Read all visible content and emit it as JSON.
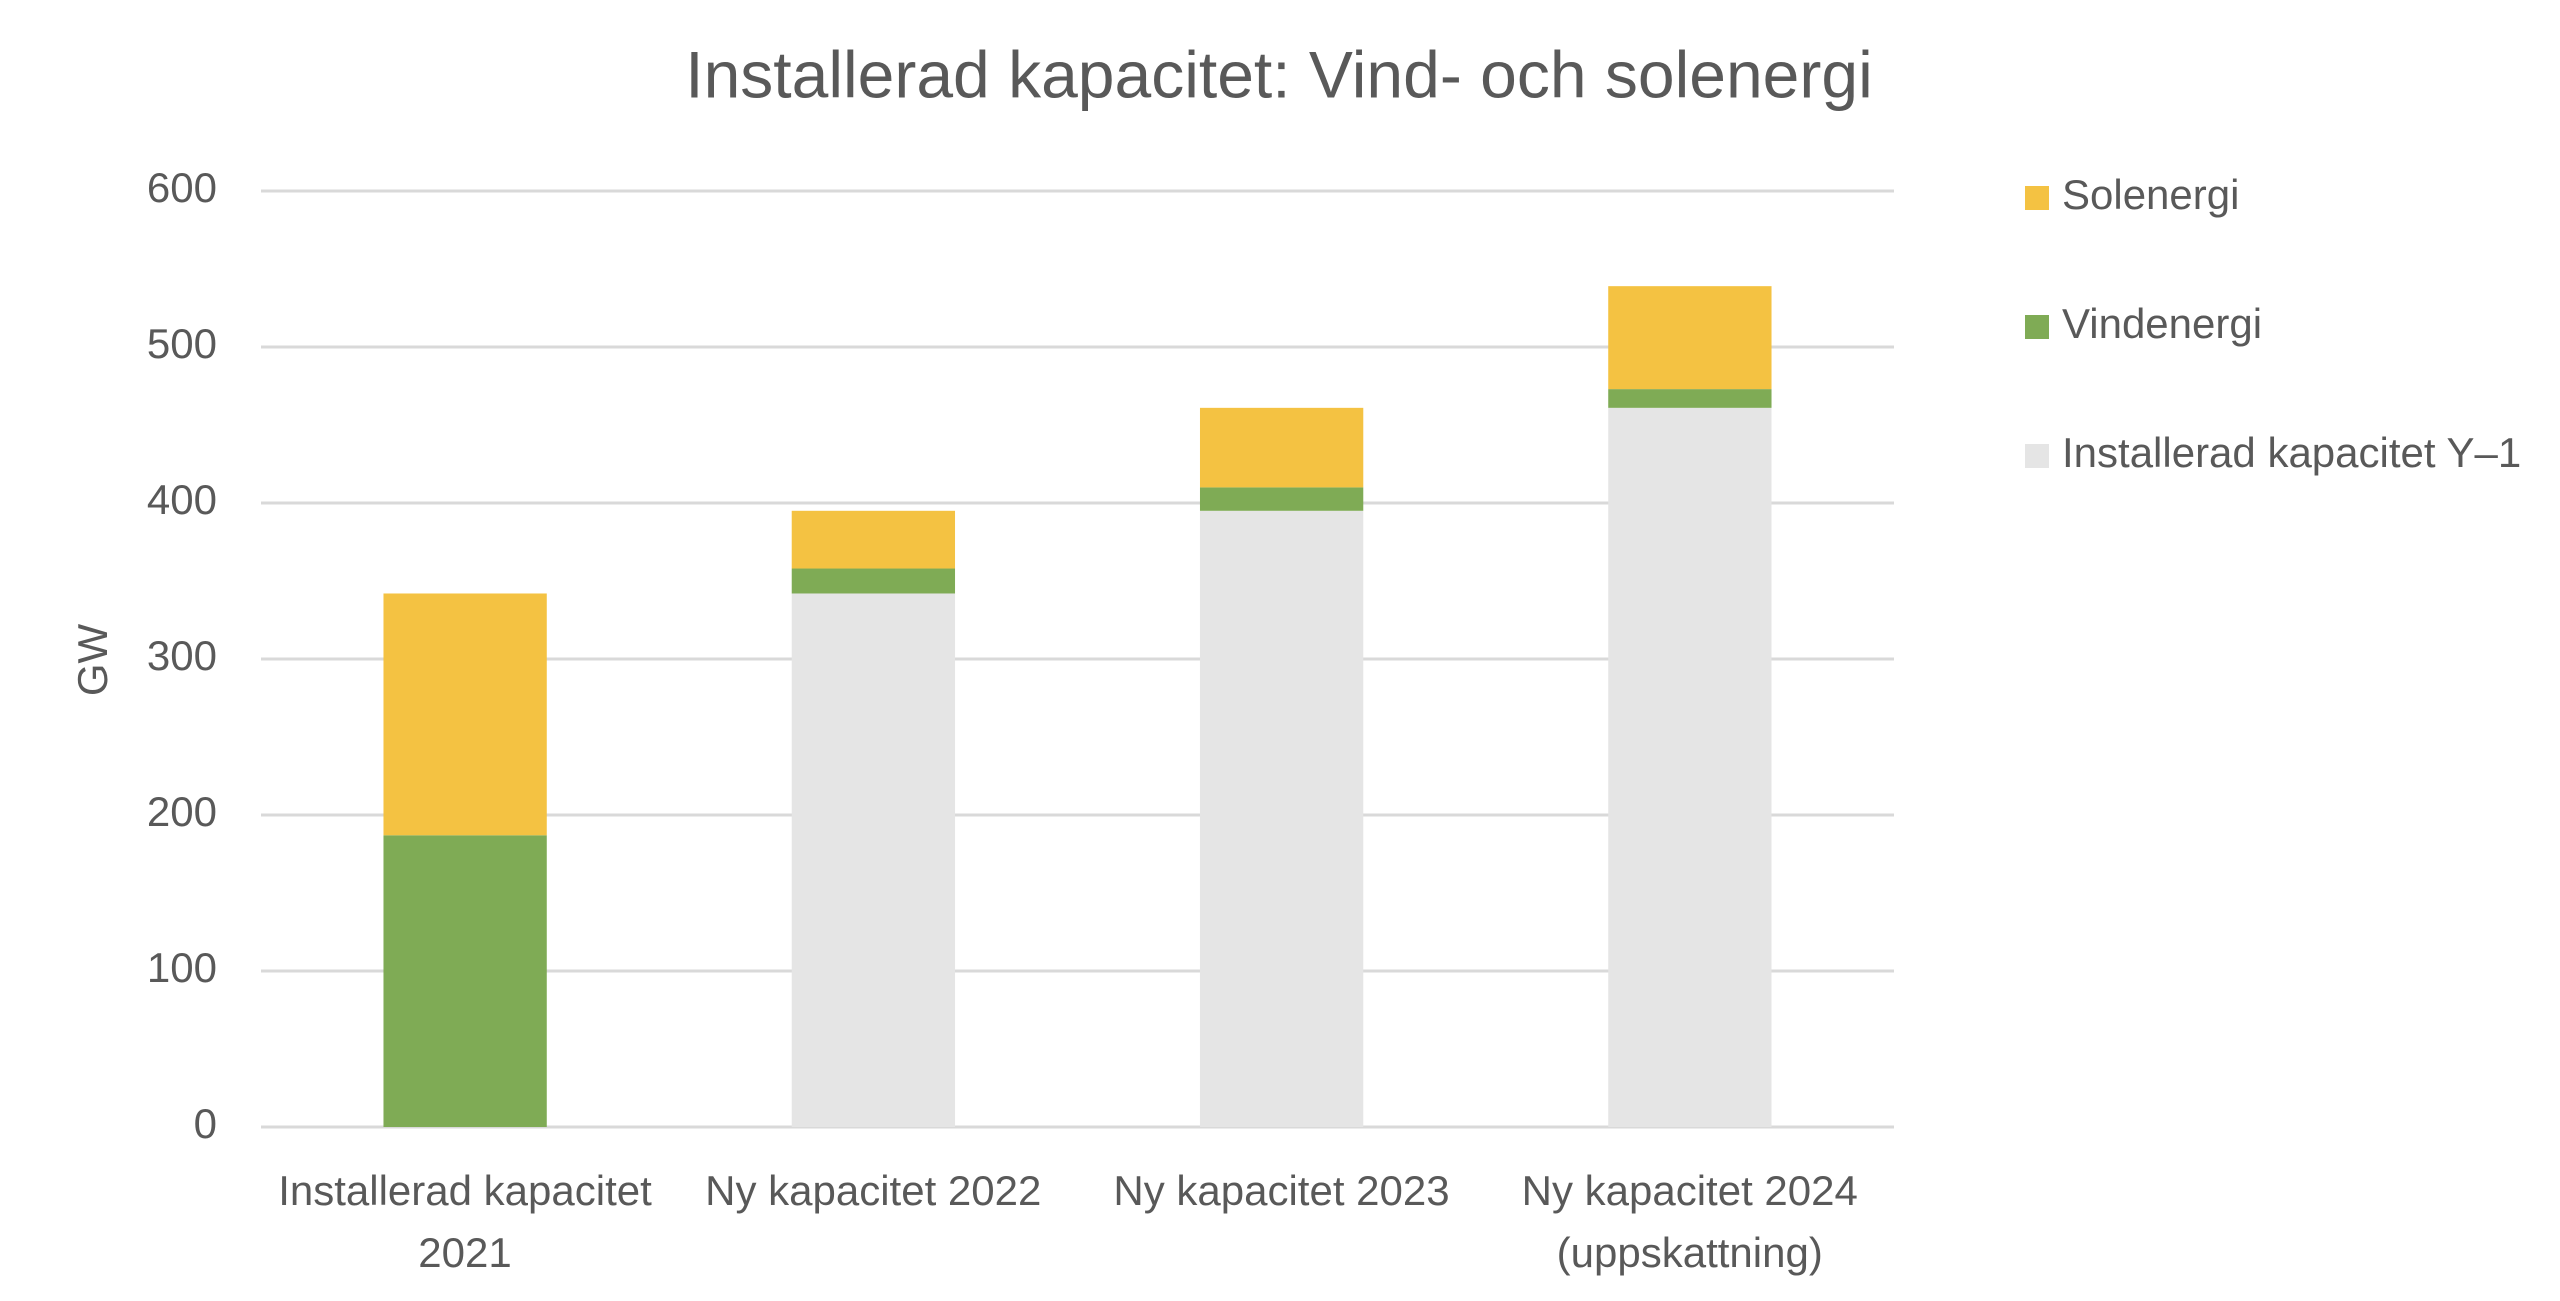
{
  "chart_data": {
    "type": "stacked_bar",
    "title": "Installerad kapacitet: Vind- och solenergi",
    "y_label": "GW",
    "categories": [
      "Installerad kapacitet 2021",
      "Ny kapacitet 2022",
      "Ny kapacitet 2023",
      "Ny kapacitet 2024 (uppskattning)"
    ],
    "series": [
      {
        "name": "Installerad kapacitet Y–1",
        "color": "#e5e5e5",
        "values": [
          0,
          342,
          395,
          461
        ]
      },
      {
        "name": "Vindenergi",
        "color": "#7fab55",
        "values": [
          187,
          16,
          15,
          12
        ]
      },
      {
        "name": "Solenergi",
        "color": "#f4c242",
        "values": [
          155,
          37,
          51,
          66
        ]
      }
    ],
    "ylim": [
      0,
      600
    ],
    "yticks": [
      0,
      100,
      200,
      300,
      400,
      500,
      600
    ],
    "grid": true,
    "legend": "right"
  }
}
